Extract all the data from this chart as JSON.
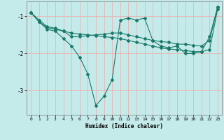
{
  "xlabel": "Humidex (Indice chaleur)",
  "bg_color": "#c5eaea",
  "grid_color": "#e8b4b4",
  "line_color": "#1a7a6a",
  "xlim": [
    -0.5,
    23.5
  ],
  "ylim": [
    -3.65,
    -0.6
  ],
  "yticks": [
    -3,
    -2,
    -1
  ],
  "xticks": [
    0,
    1,
    2,
    3,
    4,
    5,
    6,
    7,
    8,
    9,
    10,
    11,
    12,
    13,
    14,
    15,
    16,
    17,
    18,
    19,
    20,
    21,
    22,
    23
  ],
  "line1_x": [
    0,
    1,
    2,
    3,
    4,
    5,
    6,
    7,
    8,
    9,
    10,
    11,
    12,
    13,
    14,
    15,
    16,
    17,
    18,
    19,
    20,
    21,
    22,
    23
  ],
  "line1_y": [
    -0.9,
    -1.15,
    -1.3,
    -1.35,
    -1.4,
    -1.45,
    -1.48,
    -1.5,
    -1.52,
    -1.55,
    -1.57,
    -1.6,
    -1.65,
    -1.7,
    -1.75,
    -1.8,
    -1.85,
    -1.88,
    -1.9,
    -1.92,
    -1.95,
    -1.95,
    -1.9,
    -0.8
  ],
  "line2_x": [
    0,
    1,
    2,
    3,
    4,
    5,
    6,
    7,
    8,
    9,
    10,
    11,
    12,
    13,
    14,
    15,
    16,
    17,
    18,
    19,
    20,
    21,
    22,
    23
  ],
  "line2_y": [
    -0.9,
    -1.15,
    -1.35,
    -1.4,
    -1.6,
    -1.8,
    -2.1,
    -2.55,
    -3.4,
    -3.15,
    -2.7,
    -1.1,
    -1.05,
    -1.1,
    -1.05,
    -1.65,
    -1.8,
    -1.85,
    -1.8,
    -2.0,
    -2.0,
    -1.95,
    -1.55,
    -0.75
  ],
  "line3_x": [
    0,
    1,
    2,
    3,
    4,
    5,
    6,
    7,
    8,
    9,
    10,
    11,
    12,
    13,
    14,
    15,
    16,
    17,
    18,
    19,
    20,
    21,
    22,
    23
  ],
  "line3_y": [
    -0.9,
    -1.1,
    -1.28,
    -1.32,
    -1.4,
    -1.55,
    -1.55,
    -1.52,
    -1.5,
    -1.48,
    -1.45,
    -1.45,
    -1.5,
    -1.55,
    -1.6,
    -1.65,
    -1.68,
    -1.7,
    -1.75,
    -1.75,
    -1.78,
    -1.8,
    -1.65,
    -0.75
  ]
}
